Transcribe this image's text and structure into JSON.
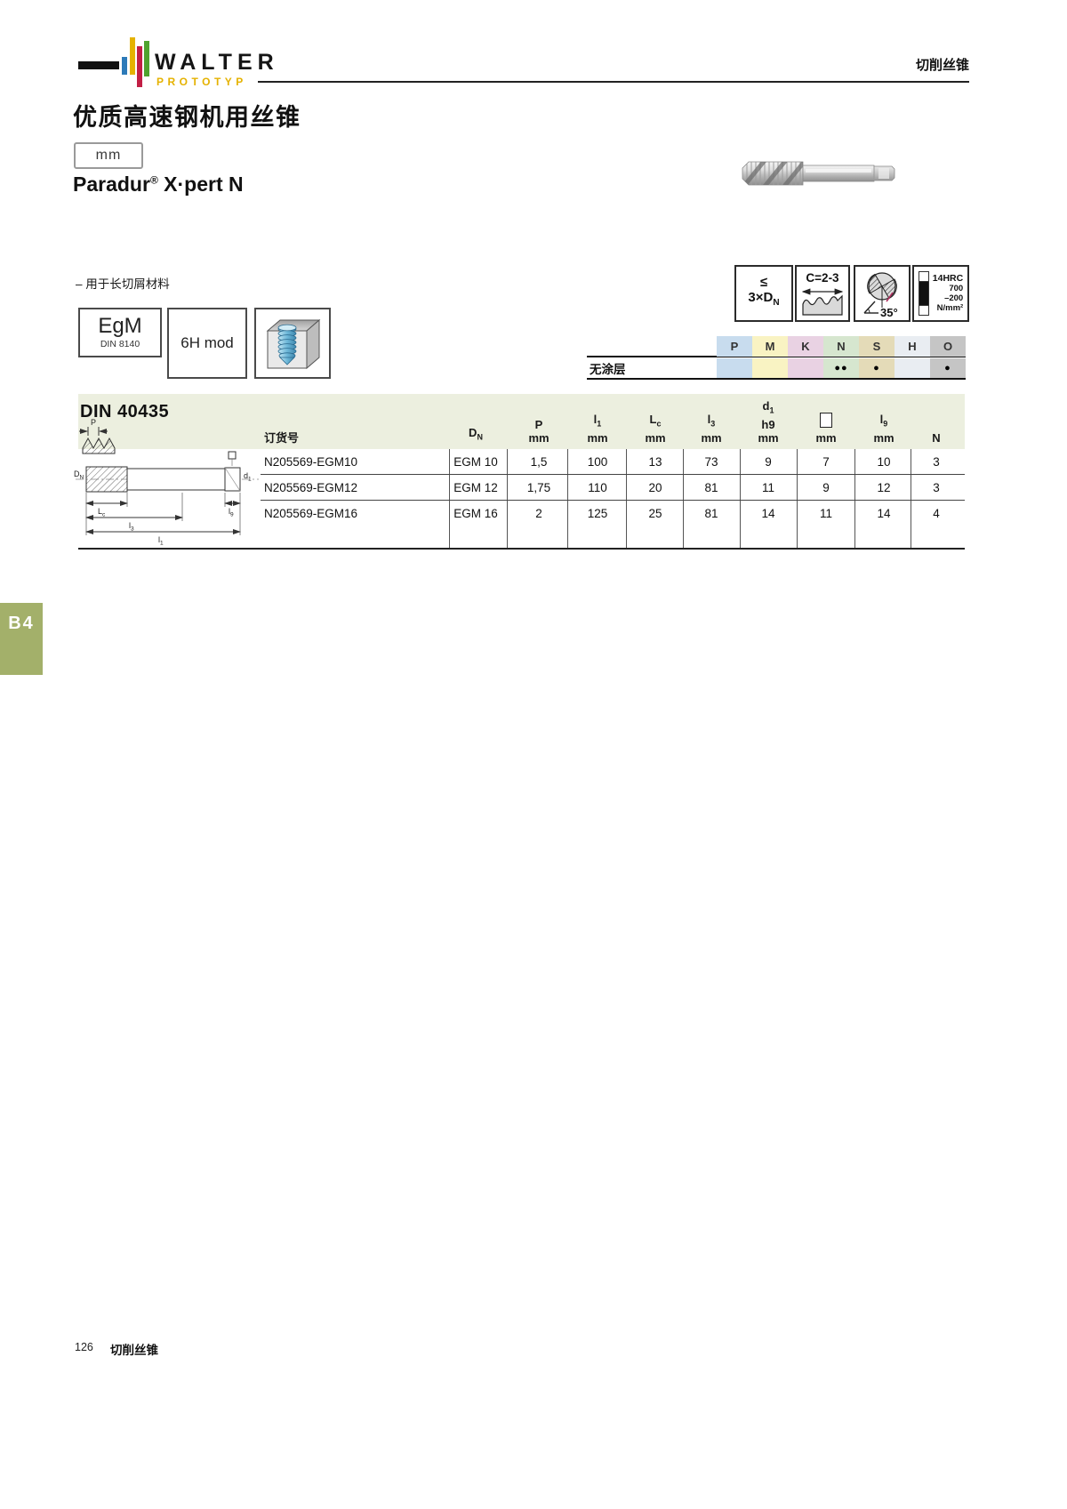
{
  "logo": {
    "brand": "WALTER",
    "brand_sub": "PROTOTYP",
    "bars": [
      "#2d7ab8",
      "#e5b200",
      "#c21f45",
      "#4fa32e"
    ],
    "dash_color": "#111111"
  },
  "header": {
    "category": "切削丝锥"
  },
  "title": "优质高速钢机用丝锥",
  "unit_badge": "mm",
  "product": {
    "brand": "Paradur",
    "reg": "®",
    "name": " X·pert N"
  },
  "feature_line": "– 用于长切屑材料",
  "spec_boxes": {
    "thread_form": "EgM",
    "thread_form_std": "DIN 8140",
    "tolerance": "6H mod",
    "thread_image": "internal-thread-cube"
  },
  "icons": {
    "depth": {
      "line1": "≤",
      "line2_main": "3×D",
      "line2_sub": "N"
    },
    "chamfer": {
      "label": "C=2-3"
    },
    "helix_angle": {
      "label": "35°"
    },
    "hardness": {
      "label": "14HRC",
      "val1": "700",
      "val2": "–200",
      "unit": "N/mm²"
    }
  },
  "material_table": {
    "row_label": "无涂层",
    "columns": [
      {
        "label": "P",
        "color": "#c8dcee",
        "dots": ""
      },
      {
        "label": "M",
        "color": "#f9f3c3",
        "dots": ""
      },
      {
        "label": "K",
        "color": "#e9d2e3",
        "dots": ""
      },
      {
        "label": "N",
        "color": "#d6e6cf",
        "dots": "●●"
      },
      {
        "label": "S",
        "color": "#e4dbb8",
        "dots": "●"
      },
      {
        "label": "H",
        "color": "#e9edf2",
        "dots": ""
      },
      {
        "label": "O",
        "color": "#c5c5c5",
        "dots": "●"
      }
    ]
  },
  "din_table": {
    "standard": "DIN 40435",
    "columns": [
      {
        "lines": [
          [
            "订货号",
            ""
          ]
        ]
      },
      {
        "lines": [
          [
            "D",
            "N"
          ]
        ]
      },
      {
        "lines": [
          [
            "P",
            ""
          ],
          [
            "mm",
            ""
          ]
        ]
      },
      {
        "lines": [
          [
            "l",
            "1"
          ],
          [
            "mm",
            ""
          ]
        ]
      },
      {
        "lines": [
          [
            "L",
            "c"
          ],
          [
            "mm",
            ""
          ]
        ]
      },
      {
        "lines": [
          [
            "l",
            "3"
          ],
          [
            "mm",
            ""
          ]
        ]
      },
      {
        "lines": [
          [
            "d",
            "1"
          ],
          [
            "h9",
            ""
          ],
          [
            "mm",
            ""
          ]
        ]
      },
      {
        "lines": [
          [
            "□",
            ""
          ],
          [
            "mm",
            ""
          ]
        ]
      },
      {
        "lines": [
          [
            "l",
            "9"
          ],
          [
            "mm",
            ""
          ]
        ]
      },
      {
        "lines": [
          [
            "N",
            ""
          ]
        ]
      }
    ],
    "rows": [
      [
        "N205569-EGM10",
        "EGM 10",
        "1,5",
        "100",
        "13",
        "73",
        "9",
        "7",
        "10",
        "3"
      ],
      [
        "N205569-EGM12",
        "EGM 12",
        "1,75",
        "110",
        "20",
        "81",
        "11",
        "9",
        "12",
        "3"
      ],
      [
        "N205569-EGM16",
        "EGM 16",
        "2",
        "125",
        "25",
        "81",
        "14",
        "11",
        "14",
        "4"
      ]
    ]
  },
  "drawing": {
    "p": {
      "main": "P",
      "sub": ""
    },
    "dn": {
      "main": "D",
      "sub": "N"
    },
    "d1": {
      "main": "d",
      "sub": "1"
    },
    "lc": {
      "main": "L",
      "sub": "c"
    },
    "l3": {
      "main": "l",
      "sub": "3"
    },
    "l1": {
      "main": "l",
      "sub": "1"
    },
    "l9": {
      "main": "l",
      "sub": "9"
    }
  },
  "side_tab": "B4",
  "footer": {
    "page": "126",
    "label": "切削丝锥"
  }
}
